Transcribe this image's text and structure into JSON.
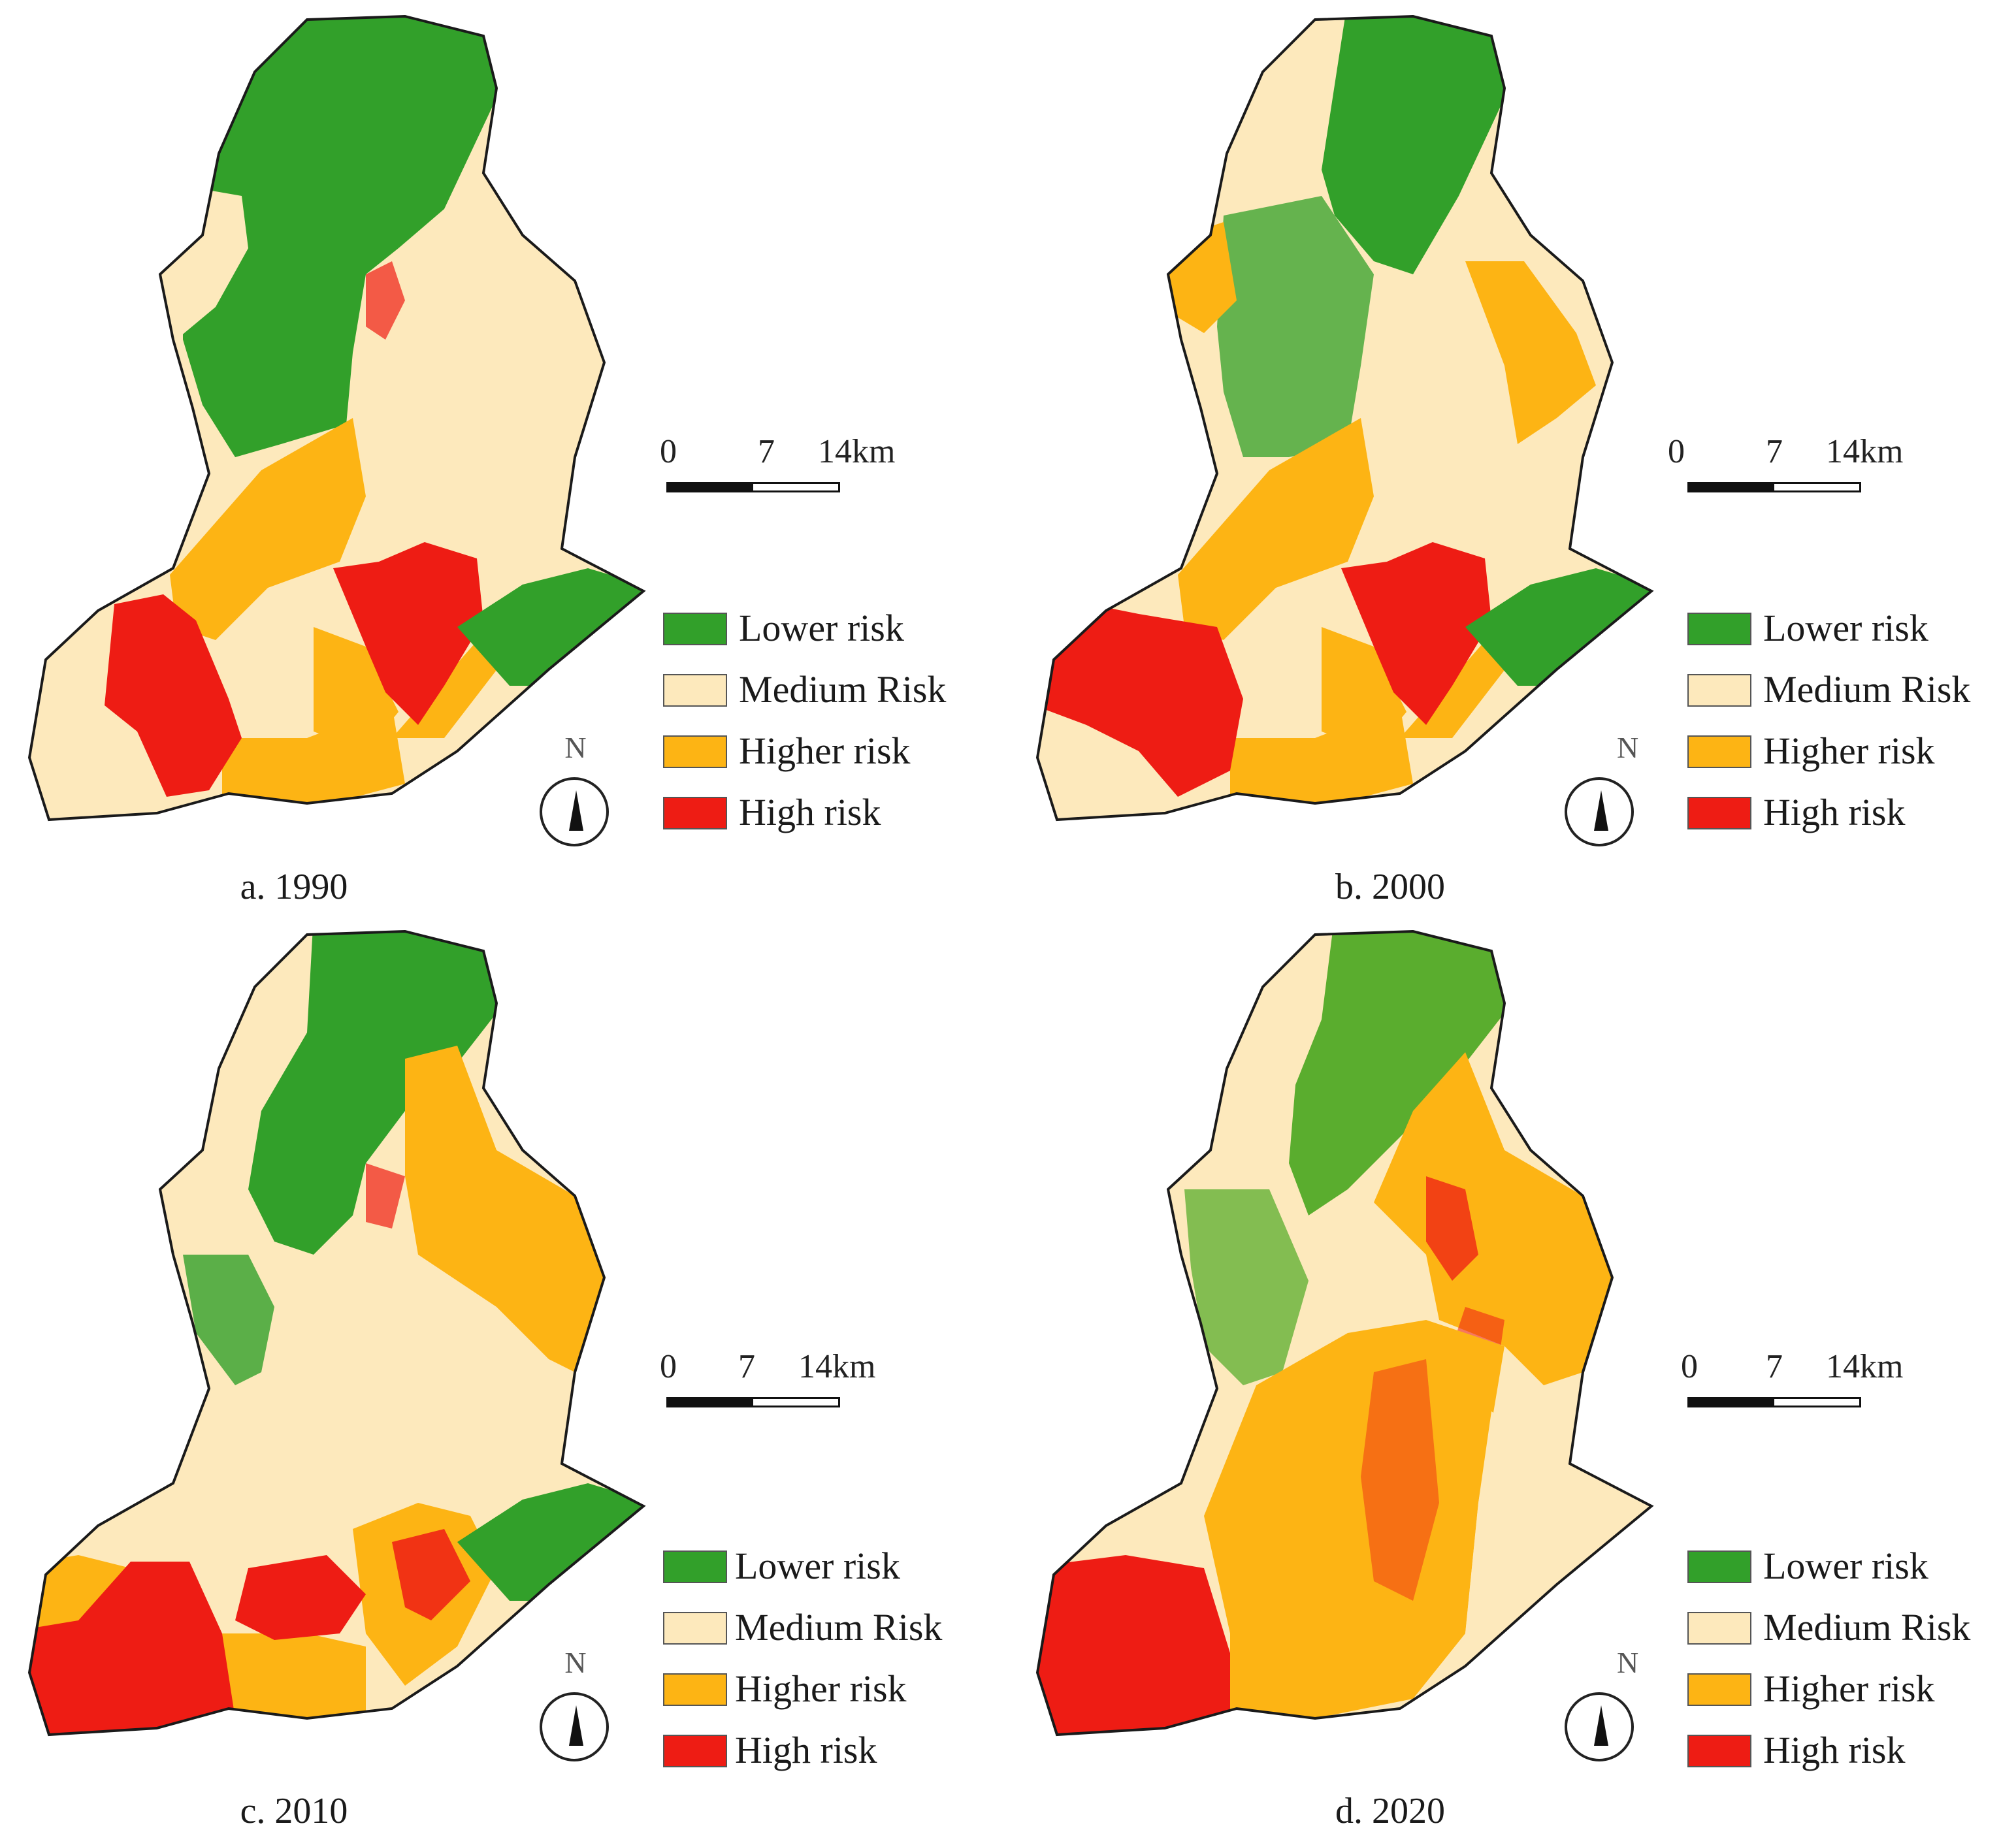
{
  "legend": {
    "items": [
      {
        "label": "Lower risk",
        "color": "#32a02a"
      },
      {
        "label": "Medium Risk",
        "color": "#fde9bc"
      },
      {
        "label": "Higher risk",
        "color": "#fdb414"
      },
      {
        "label": "High risk",
        "color": "#ee1c14"
      }
    ]
  },
  "scale": {
    "labels": [
      "0",
      "7",
      "14km"
    ]
  },
  "north_label": "N",
  "panels": [
    {
      "caption": "a. 1990"
    },
    {
      "caption": "b. 2000"
    },
    {
      "caption": "c. 2010"
    },
    {
      "caption": "d. 2020"
    }
  ],
  "colors": {
    "boundary": "#1a1a1a",
    "lower": "#32a02a",
    "medium": "#fde9bc",
    "higher": "#fdb414",
    "high": "#ee1c14"
  }
}
